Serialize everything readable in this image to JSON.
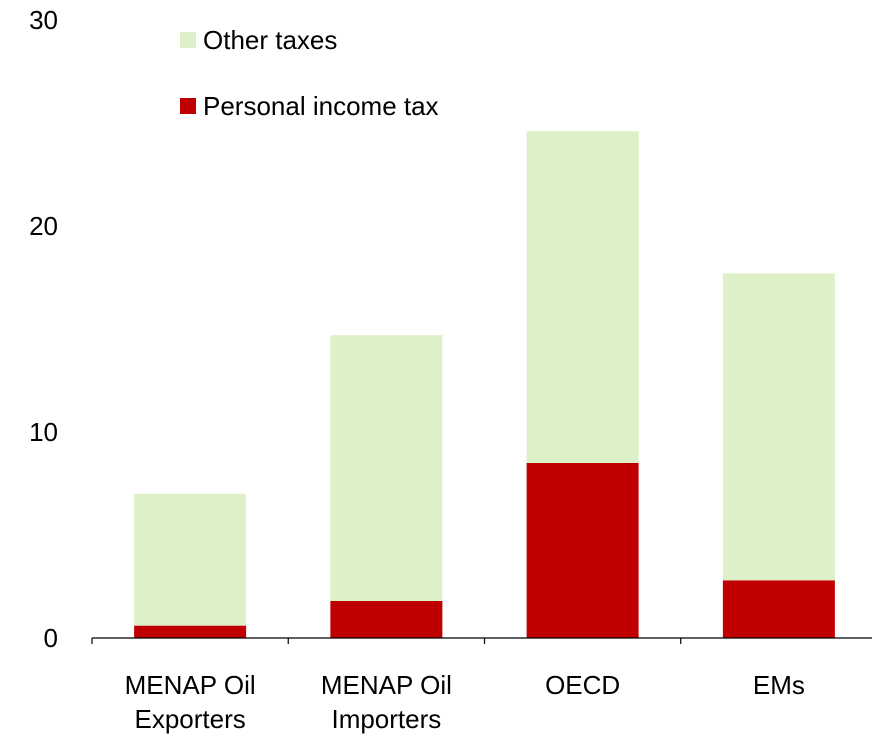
{
  "chart_data": {
    "type": "bar",
    "stacked": true,
    "categories": [
      [
        "MENAP Oil",
        "Exporters"
      ],
      [
        "MENAP Oil",
        "Importers"
      ],
      [
        "OECD"
      ],
      [
        "EMs"
      ]
    ],
    "series": [
      {
        "name": "Personal income tax",
        "color": "#c00000",
        "values": [
          0.6,
          1.8,
          8.5,
          2.8
        ]
      },
      {
        "name": "Other taxes",
        "color": "#ddf0c8",
        "values": [
          6.4,
          12.9,
          16.1,
          14.9
        ]
      }
    ],
    "ylim": [
      0,
      30
    ],
    "yticks": [
      0,
      10,
      20,
      30
    ],
    "grid": false,
    "legend": "top-left"
  }
}
